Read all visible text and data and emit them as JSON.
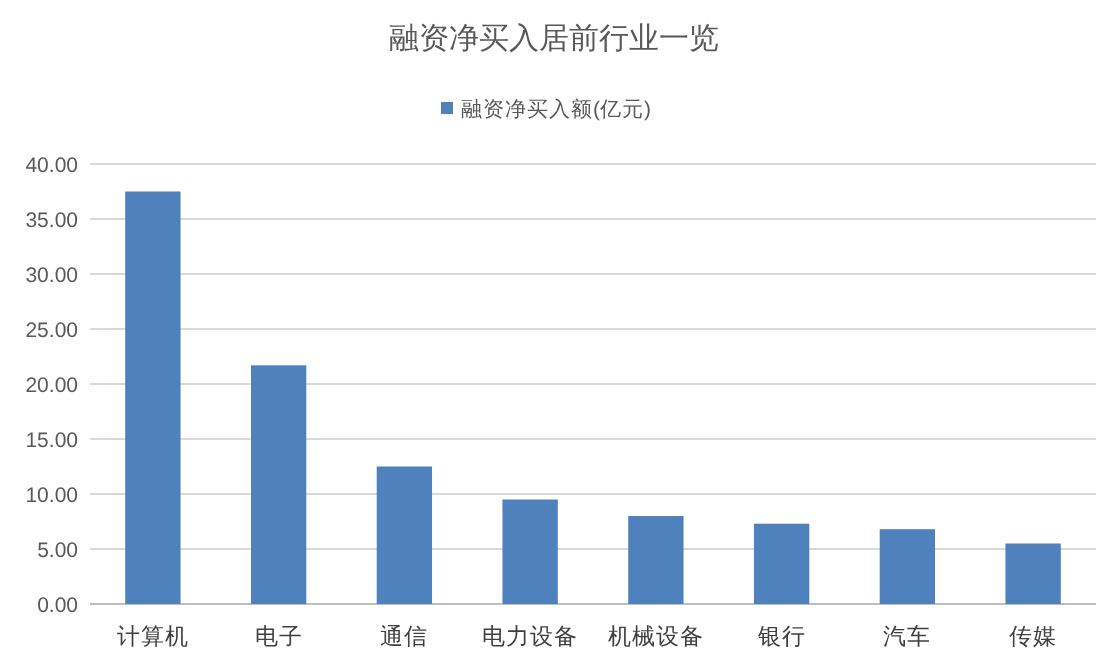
{
  "chart_data": {
    "type": "bar",
    "title": "融资净买入居前行业一览",
    "categories": [
      "计算机",
      "电子",
      "通信",
      "电力设备",
      "机械设备",
      "银行",
      "汽车",
      "传媒"
    ],
    "series": [
      {
        "name": "融资净买入额(亿元)",
        "color": "#4f81bd",
        "values": [
          37.5,
          21.7,
          12.5,
          9.5,
          8.0,
          7.3,
          6.8,
          5.5
        ]
      }
    ],
    "ylim": [
      0,
      40
    ],
    "yticks": [
      {
        "value": 0,
        "label": "0.00"
      },
      {
        "value": 5,
        "label": "5.00"
      },
      {
        "value": 10,
        "label": "10.00"
      },
      {
        "value": 15,
        "label": "15.00"
      },
      {
        "value": 20,
        "label": "20.00"
      },
      {
        "value": 25,
        "label": "25.00"
      },
      {
        "value": 30,
        "label": "30.00"
      },
      {
        "value": 35,
        "label": "35.00"
      },
      {
        "value": 40,
        "label": "40.00"
      }
    ],
    "grid": "y",
    "legend": "top"
  }
}
